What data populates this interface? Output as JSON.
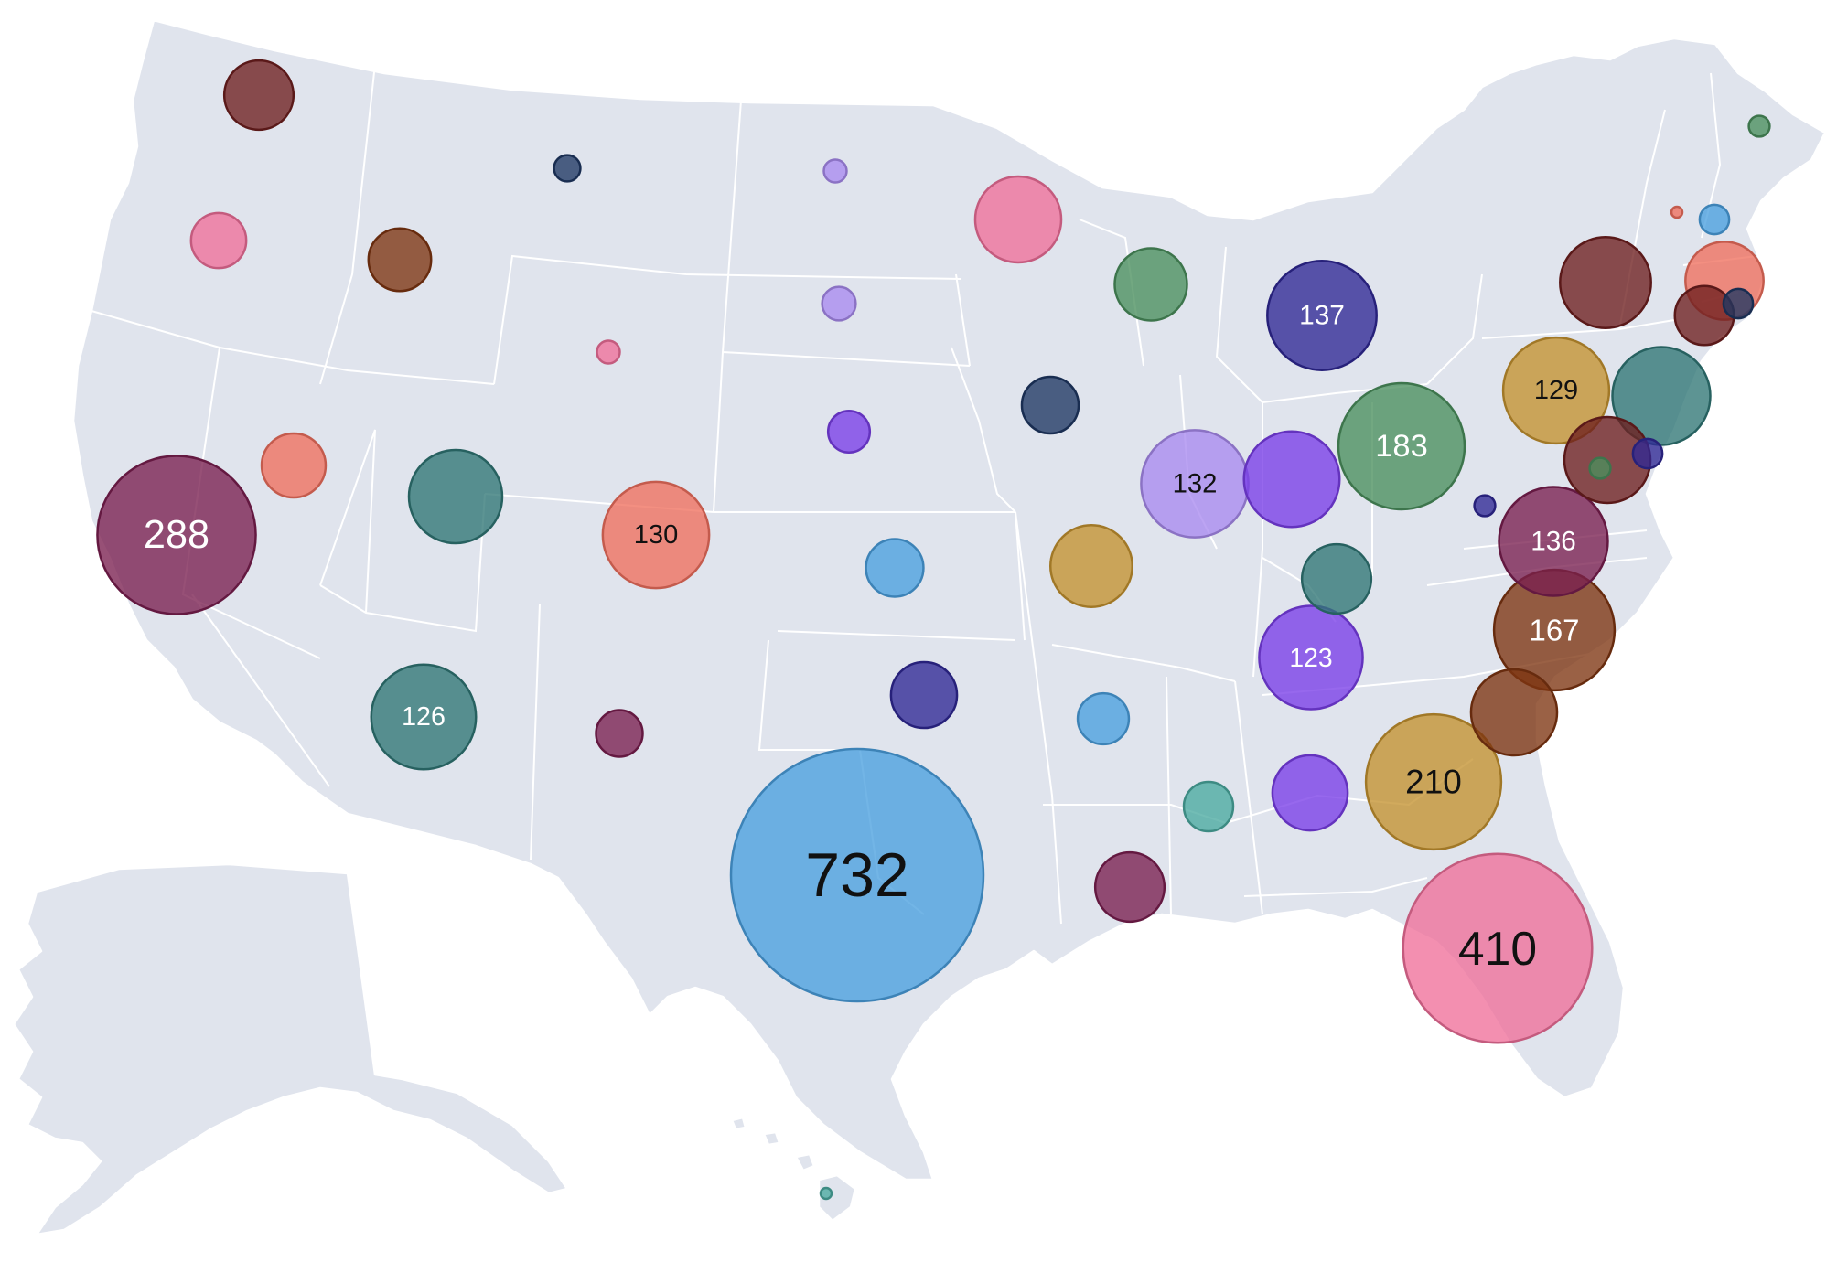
{
  "map": {
    "region": "United States",
    "colors": {
      "land": "#e0e4ed",
      "border": "#ffffff",
      "background": "#ffffff"
    }
  },
  "chart_data": {
    "type": "bubble-map",
    "title": "",
    "labeled_threshold": 120,
    "bubbles": [
      {
        "name": "WA",
        "value": 55,
        "color": "#6e1f1f"
      },
      {
        "name": "OR",
        "value": 35,
        "color": "#ef6f9a"
      },
      {
        "name": "ID",
        "value": 45,
        "color": "#7d3511"
      },
      {
        "name": "MT",
        "value": 8,
        "color": "#1f3763"
      },
      {
        "name": "ND",
        "value": 6,
        "color": "#a98bef"
      },
      {
        "name": "MN",
        "value": 85,
        "color": "#ef6f9a"
      },
      {
        "name": "SD",
        "value": 13,
        "color": "#a98bef"
      },
      {
        "name": "WY",
        "value": 6,
        "color": "#ef6f9a"
      },
      {
        "name": "NE",
        "value": 20,
        "color": "#7a3ee8"
      },
      {
        "name": "IA",
        "value": 37,
        "color": "#1f3763"
      },
      {
        "name": "WI",
        "value": 60,
        "color": "#4a8f5d"
      },
      {
        "name": "MI",
        "value": 137,
        "color": "#2f2895"
      },
      {
        "name": "NV",
        "value": 47,
        "color": "#ef6f5e"
      },
      {
        "name": "CA",
        "value": 288,
        "color": "#7a1f4f"
      },
      {
        "name": "UT",
        "value": 100,
        "color": "#2f7675"
      },
      {
        "name": "CO",
        "value": 130,
        "color": "#ef6f5e"
      },
      {
        "name": "KS",
        "value": 38,
        "color": "#4aa0df"
      },
      {
        "name": "MO",
        "value": 77,
        "color": "#c4922f"
      },
      {
        "name": "IL",
        "value": 132,
        "color": "#a98bef"
      },
      {
        "name": "IN",
        "value": 105,
        "color": "#7a3ee8"
      },
      {
        "name": "OH",
        "value": 183,
        "color": "#4a8f5d"
      },
      {
        "name": "KY",
        "value": 55,
        "color": "#2f7675"
      },
      {
        "name": "WV",
        "value": 5,
        "color": "#2f2895"
      },
      {
        "name": "AZ",
        "value": 126,
        "color": "#2f7675"
      },
      {
        "name": "NM",
        "value": 25,
        "color": "#7a1f4f"
      },
      {
        "name": "OK",
        "value": 50,
        "color": "#2f2895"
      },
      {
        "name": "AR",
        "value": 30,
        "color": "#4aa0df"
      },
      {
        "name": "TN",
        "value": 123,
        "color": "#7a3ee8"
      },
      {
        "name": "MS",
        "value": 28,
        "color": "#4aaaa0"
      },
      {
        "name": "AL",
        "value": 65,
        "color": "#7a3ee8"
      },
      {
        "name": "GA",
        "value": 210,
        "color": "#c4922f"
      },
      {
        "name": "SC",
        "value": 85,
        "color": "#7d3511"
      },
      {
        "name": "NC",
        "value": 167,
        "color": "#7d3511"
      },
      {
        "name": "VA",
        "value": 136,
        "color": "#7a1f4f"
      },
      {
        "name": "TX",
        "value": 732,
        "color": "#4aa0df"
      },
      {
        "name": "LA",
        "value": 55,
        "color": "#7a1f4f"
      },
      {
        "name": "FL",
        "value": 410,
        "color": "#ef6f9a"
      },
      {
        "name": "PA",
        "value": 95,
        "color": "#6e1f1f"
      },
      {
        "name": "NY",
        "value": 129,
        "color": "#c4922f"
      },
      {
        "name": "NJ",
        "value": 110,
        "color": "#2f7675"
      },
      {
        "name": "MD",
        "value": 85,
        "color": "#6e1f1f"
      },
      {
        "name": "DE",
        "value": 5,
        "color": "#4a8f5d"
      },
      {
        "name": "DC",
        "value": 10,
        "color": "#2f2895"
      },
      {
        "name": "CT",
        "value": 40,
        "color": "#6e1f1f"
      },
      {
        "name": "RI",
        "value": 10,
        "color": "#1f3763"
      },
      {
        "name": "MA",
        "value": 70,
        "color": "#ef6f5e"
      },
      {
        "name": "VT",
        "value": 1,
        "color": "#ef6f5e"
      },
      {
        "name": "NH",
        "value": 10,
        "color": "#4aa0df"
      },
      {
        "name": "ME",
        "value": 5,
        "color": "#4a8f5d"
      },
      {
        "name": "HI",
        "value": 1,
        "color": "#4aaaa0"
      }
    ]
  }
}
